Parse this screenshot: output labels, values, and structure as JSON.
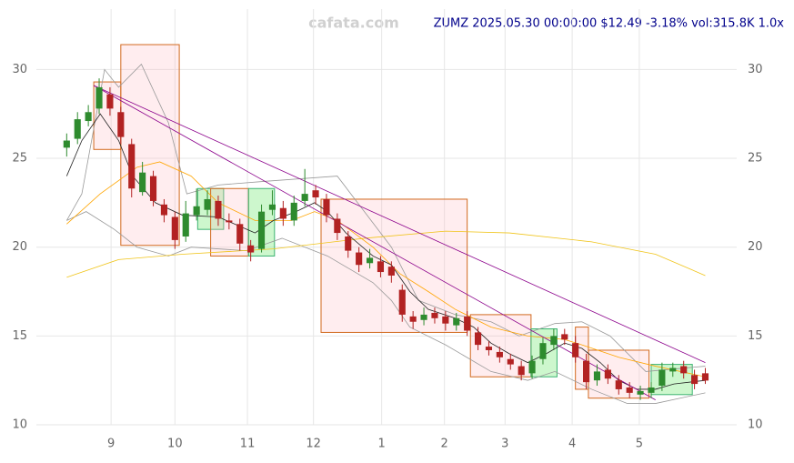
{
  "chart_data": {
    "type": "candlestick",
    "title": "ZUMZ 2025.05.30 00:00:00 $12.49 -3.18% vol:315.8K 1.0x",
    "watermark": "cafata.com",
    "up_color": "#2e8b2e",
    "down_color": "#b22222",
    "grid": true,
    "xlim": [
      -2.8,
      61.9
    ],
    "xticks": [
      {
        "value": 4.1,
        "label": "9"
      },
      {
        "value": 10.0,
        "label": "10"
      },
      {
        "value": 16.7,
        "label": "11"
      },
      {
        "value": 22.8,
        "label": "12"
      },
      {
        "value": 29.1,
        "label": "1"
      },
      {
        "value": 34.9,
        "label": "2"
      },
      {
        "value": 40.5,
        "label": "3"
      },
      {
        "value": 46.7,
        "label": "4"
      },
      {
        "value": 52.9,
        "label": "5"
      }
    ],
    "ylim": [
      10,
      33.4
    ],
    "yticks": [
      10,
      15,
      20,
      25,
      30
    ],
    "open": [
      25.6,
      26.1,
      27.1,
      27.8,
      28.6,
      27.6,
      25.8,
      23.1,
      24.0,
      22.4,
      21.7,
      20.6,
      21.8,
      22.1,
      22.6,
      21.5,
      21.3,
      20.1,
      19.9,
      22.1,
      22.2,
      21.5,
      22.6,
      23.2,
      22.7,
      21.6,
      20.6,
      19.7,
      19.1,
      19.2,
      18.9,
      17.6,
      16.1,
      15.9,
      16.3,
      16.1,
      15.6,
      16.1,
      15.2,
      14.4,
      14.1,
      13.7,
      13.3,
      12.9,
      13.7,
      14.5,
      15.1,
      14.6,
      13.6,
      12.5,
      13.1,
      12.5,
      12.1,
      11.7,
      11.8,
      12.2,
      13.0,
      13.3,
      12.8,
      12.9
    ],
    "high": [
      26.4,
      27.6,
      28.0,
      29.5,
      29.0,
      27.9,
      26.1,
      24.8,
      24.3,
      22.7,
      22.0,
      22.6,
      23.3,
      23.2,
      22.9,
      21.9,
      21.6,
      20.4,
      22.4,
      23.2,
      22.6,
      22.9,
      24.4,
      23.5,
      23.0,
      21.9,
      20.9,
      20.0,
      19.9,
      19.5,
      19.2,
      17.9,
      16.4,
      16.6,
      16.6,
      16.4,
      16.3,
      16.4,
      15.5,
      14.7,
      14.4,
      14.0,
      13.6,
      13.9,
      14.9,
      15.4,
      15.4,
      15.0,
      14.0,
      13.4,
      13.4,
      12.8,
      12.4,
      12.2,
      12.4,
      13.5,
      13.5,
      13.6,
      13.1,
      13.2
    ],
    "low": [
      25.1,
      25.8,
      26.8,
      27.5,
      27.4,
      25.8,
      22.8,
      22.9,
      22.3,
      21.4,
      19.9,
      20.3,
      21.5,
      21.8,
      21.2,
      21.0,
      19.8,
      19.2,
      19.7,
      21.8,
      21.2,
      21.2,
      22.3,
      22.4,
      21.4,
      20.4,
      19.4,
      18.6,
      18.8,
      18.3,
      18.0,
      15.8,
      15.4,
      15.6,
      15.7,
      15.3,
      15.3,
      15.0,
      14.2,
      13.9,
      13.5,
      13.1,
      12.5,
      12.6,
      13.4,
      14.2,
      14.5,
      13.5,
      12.0,
      12.2,
      12.3,
      11.7,
      11.5,
      11.4,
      11.5,
      11.9,
      12.7,
      12.6,
      12.0,
      12.3
    ],
    "close": [
      26.0,
      27.2,
      27.6,
      29.0,
      27.8,
      26.2,
      23.3,
      24.2,
      22.6,
      21.8,
      20.4,
      21.9,
      22.3,
      22.7,
      21.6,
      21.4,
      20.2,
      19.7,
      22.0,
      22.4,
      21.6,
      22.5,
      23.0,
      22.8,
      21.8,
      20.8,
      19.8,
      19.0,
      19.4,
      18.6,
      18.4,
      16.2,
      15.8,
      16.2,
      16.0,
      15.7,
      16.0,
      15.3,
      14.5,
      14.2,
      13.8,
      13.4,
      12.8,
      13.6,
      14.6,
      15.0,
      14.8,
      13.8,
      12.4,
      13.0,
      12.6,
      12.0,
      11.8,
      11.9,
      12.1,
      13.1,
      13.2,
      12.9,
      12.3,
      12.49
    ],
    "boxes": [
      {
        "from": 2.5,
        "to": 5.0,
        "low": 25.5,
        "high": 29.3,
        "color": "#ffb6c1"
      },
      {
        "from": 5.0,
        "to": 10.4,
        "low": 20.1,
        "high": 31.4,
        "color": "#ffb6c1"
      },
      {
        "from": 12.1,
        "to": 14.5,
        "low": 21.0,
        "high": 23.3,
        "color": "#90ee90"
      },
      {
        "from": 13.3,
        "to": 16.8,
        "low": 19.5,
        "high": 23.3,
        "color": "#ffb6c1"
      },
      {
        "from": 16.8,
        "to": 19.2,
        "low": 19.5,
        "high": 23.3,
        "color": "#90ee90"
      },
      {
        "from": 23.5,
        "to": 37.0,
        "low": 15.2,
        "high": 22.7,
        "color": "#ffb6c1"
      },
      {
        "from": 37.3,
        "to": 42.9,
        "low": 12.7,
        "high": 16.2,
        "color": "#ffb6c1"
      },
      {
        "from": 42.9,
        "to": 45.3,
        "low": 12.7,
        "high": 15.4,
        "color": "#90ee90"
      },
      {
        "from": 47.0,
        "to": 48.2,
        "low": 12.0,
        "high": 15.5,
        "color": "#ffb6c1"
      },
      {
        "from": 48.2,
        "to": 53.8,
        "low": 11.5,
        "high": 14.2,
        "color": "#ffb6c1"
      },
      {
        "from": 54.0,
        "to": 57.8,
        "low": 11.7,
        "high": 13.4,
        "color": "#90ee90"
      }
    ],
    "lines": [
      {
        "color": "#999999",
        "x": [
          0,
          1.4,
          3.5,
          4.8,
          6.9,
          9.4,
          11.1,
          14.0,
          18.2,
          25.0,
          27.5,
          30.0,
          32.5,
          35.9,
          39.2,
          41.8,
          45.1,
          47.6,
          50.2,
          53.5,
          59
        ],
        "values": [
          21.5,
          23,
          30,
          29,
          30.3,
          27,
          23,
          23.5,
          23.7,
          24,
          22,
          20,
          17,
          16.2,
          15.8,
          15,
          15.7,
          15.8,
          15,
          13,
          13.3
        ]
      },
      {
        "color": "#999999",
        "x": [
          0,
          1.8,
          4.4,
          6.5,
          9.4,
          11.5,
          16.6,
          19.9,
          24.1,
          28.3,
          30.0,
          31.7,
          35.0,
          39.2,
          42.6,
          45.1,
          48.5,
          51.8,
          54.4,
          59
        ],
        "values": [
          21.5,
          22,
          21,
          20,
          19.5,
          20,
          19.8,
          20.5,
          19.5,
          18,
          17,
          15.5,
          14.5,
          13,
          12.5,
          13,
          12,
          11.2,
          11.2,
          11.8
        ]
      },
      {
        "color": "#f0c419",
        "x": [
          0,
          4.8,
          10.7,
          19.1,
          27.5,
          35.0,
          40.9,
          48.5,
          54.4,
          59
        ],
        "values": [
          18.3,
          19.3,
          19.6,
          19.9,
          20.5,
          20.9,
          20.8,
          20.3,
          19.6,
          18.4
        ]
      },
      {
        "color": "#ffa500",
        "x": [
          0,
          3.1,
          6.5,
          8.6,
          11.5,
          14.0,
          17.4,
          20.8,
          22.9,
          25.0,
          28.3,
          30.8,
          33.4,
          35.9,
          39.2,
          42.6,
          46.0,
          47.6,
          51.0,
          54.4,
          59
        ],
        "values": [
          21.3,
          23,
          24.5,
          24.8,
          24,
          22.5,
          21.5,
          21.5,
          22,
          21.5,
          20,
          18.5,
          17.5,
          16.5,
          15.5,
          15,
          14.8,
          14.5,
          13.8,
          13.3,
          12.7
        ]
      },
      {
        "color": "#222222",
        "x": [
          0,
          1.4,
          3.1,
          4.8,
          6.1,
          8.2,
          10.7,
          14.0,
          17.4,
          19.1,
          21.2,
          22.9,
          24.1,
          25.8,
          28.3,
          30.0,
          31.7,
          33.4,
          35.9,
          37.6,
          39.2,
          40.9,
          42.6,
          44.3,
          46.0,
          47.6,
          49.3,
          51.0,
          52.7,
          54.4,
          56.1,
          59
        ],
        "values": [
          24,
          26,
          27.5,
          26,
          24,
          22.5,
          21.8,
          21.7,
          20.8,
          21.5,
          22,
          22.5,
          22,
          20.8,
          19.5,
          19,
          17.5,
          16.5,
          16,
          15.5,
          14.6,
          14,
          13.5,
          14,
          14.6,
          14.3,
          13.5,
          12.5,
          12,
          12,
          12.3,
          12.5
        ]
      },
      {
        "color": "#8b008b",
        "x": [
          2.5,
          59
        ],
        "values": [
          29.1,
          13.5
        ]
      },
      {
        "color": "#8b008b",
        "x": [
          2.5,
          54.4
        ],
        "values": [
          29.1,
          11.4
        ]
      }
    ]
  }
}
